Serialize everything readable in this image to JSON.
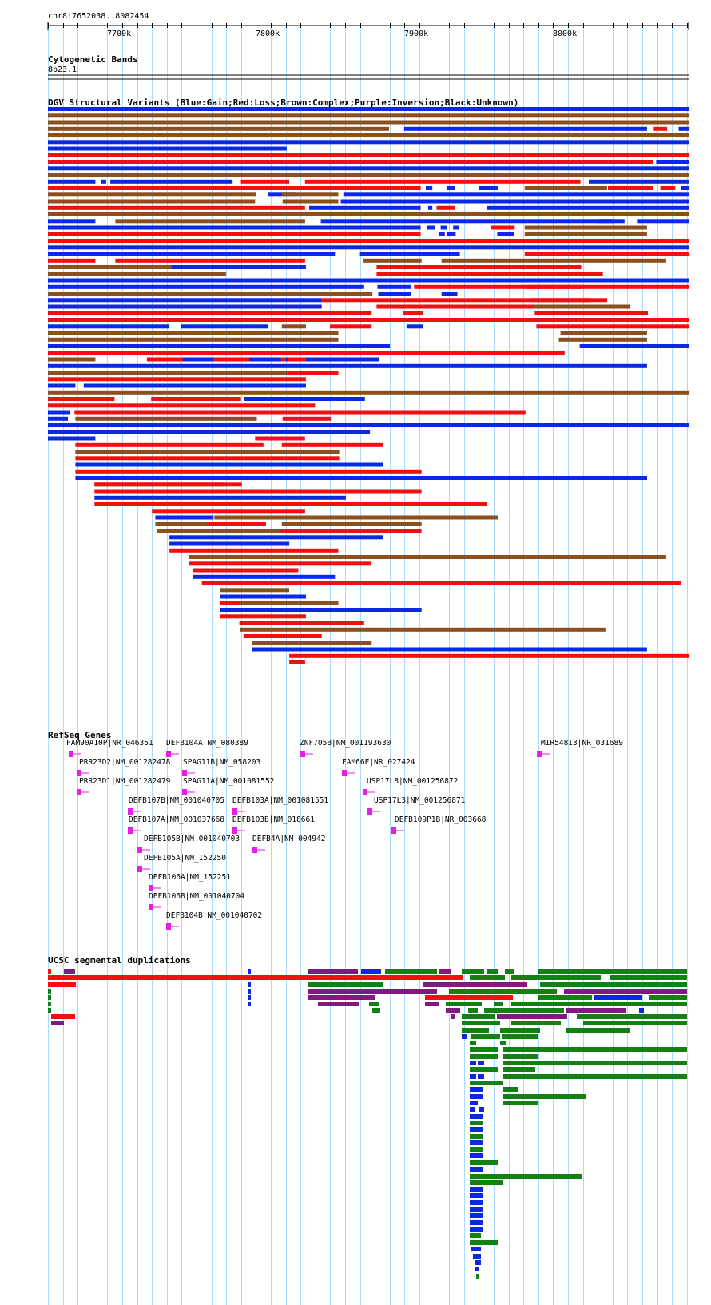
{
  "ruler": {
    "range_label": "chr8:7652038..8082454",
    "ticks": [
      "7700k",
      "7800k",
      "7900k",
      "8000k"
    ]
  },
  "cytoband": {
    "title": "Cytogenetic Bands",
    "band": "8p23.1"
  },
  "dgv": {
    "title": "DGV Structural Variants (Blue:Gain;Red:Loss;Brown:Complex;Purple:Inversion;Black:Unknown)"
  },
  "refseq": {
    "title": "RefSeq Genes",
    "genes": [
      {
        "label": "FAM90A10P|NR_046351"
      },
      {
        "label": "DEFB104A|NM_080389"
      },
      {
        "label": "ZNF705B|NM_001193630"
      },
      {
        "label": "MIR548I3|NR_031689"
      },
      {
        "label": "PRR23D2|NM_001282478"
      },
      {
        "label": "SPAG11B|NM_058203"
      },
      {
        "label": "FAM66E|NR_027424"
      },
      {
        "label": "PRR23D1|NM_001282479"
      },
      {
        "label": "SPAG11A|NM_001081552"
      },
      {
        "label": "USP17L8|NM_001256872"
      },
      {
        "label": "DEFB107B|NM_001040705"
      },
      {
        "label": "DEFB103A|NM_001081551"
      },
      {
        "label": "USP17L3|NM_001256871"
      },
      {
        "label": "DEFB107A|NM_001037668"
      },
      {
        "label": "DEFB103B|NM_018661"
      },
      {
        "label": "DEFB109P1B|NR_003668"
      },
      {
        "label": "DEFB105B|NM_001040703"
      },
      {
        "label": "DEFB4A|NM_004942"
      },
      {
        "label": "DEFB105A|NM_152250"
      },
      {
        "label": "DEFB106A|NM_152251"
      },
      {
        "label": "DEFB106B|NM_001040704"
      },
      {
        "label": "DEFB104B|NM_001040702"
      }
    ]
  },
  "segdups": {
    "title": "UCSC segmental duplications"
  },
  "colors": {
    "gain": "#0a28e6",
    "loss": "#f01010",
    "complex": "#8c501e",
    "inversion": "#801a80",
    "unknown": "#000000",
    "gene": "#e61ee6",
    "segdup_green": "#128012",
    "grid": "#a8dcff"
  },
  "dgv_rows": [
    [
      [
        "b",
        0,
        770
      ]
    ],
    [
      [
        "n",
        0,
        770
      ]
    ],
    [
      [
        "n",
        0,
        770
      ]
    ],
    [
      [
        "n",
        0,
        410
      ],
      [
        "b",
        428,
        720
      ],
      [
        "r",
        728,
        744
      ],
      [
        "b",
        758,
        770
      ]
    ],
    [
      [
        "n",
        0,
        770
      ]
    ],
    [
      [
        "b",
        0,
        770
      ]
    ],
    [
      [
        "b",
        0,
        287
      ]
    ],
    [
      [
        "r",
        0,
        770
      ]
    ],
    [
      [
        "r",
        0,
        727
      ],
      [
        "b",
        731,
        770
      ]
    ],
    [
      [
        "b",
        0,
        770
      ]
    ],
    [
      [
        "n",
        0,
        770
      ]
    ],
    [
      [
        "b",
        0,
        57
      ],
      [
        "b",
        64,
        70
      ],
      [
        "b",
        75,
        222
      ],
      [
        "r",
        232,
        290
      ],
      [
        "r",
        309,
        640
      ],
      [
        "b",
        650,
        770
      ]
    ],
    [
      [
        "r",
        0,
        448
      ],
      [
        "b",
        454,
        462
      ],
      [
        "b",
        479,
        489
      ],
      [
        "b",
        518,
        541
      ],
      [
        "n",
        573,
        672
      ],
      [
        "r",
        673,
        727
      ],
      [
        "r",
        736,
        754
      ],
      [
        "b",
        761,
        770
      ]
    ],
    [
      [
        "n",
        0,
        250
      ],
      [
        "b",
        264,
        298
      ],
      [
        "n",
        281,
        349
      ],
      [
        "b",
        355,
        770
      ]
    ],
    [
      [
        "n",
        0,
        249
      ],
      [
        "n",
        282,
        349
      ],
      [
        "b",
        352,
        770
      ]
    ],
    [
      [
        "r",
        0,
        309
      ],
      [
        "b",
        314,
        448
      ],
      [
        "b",
        457,
        462
      ],
      [
        "r",
        467,
        489
      ],
      [
        "b",
        528,
        770
      ]
    ],
    [
      [
        "n",
        0,
        770
      ]
    ],
    [
      [
        "b",
        0,
        57
      ],
      [
        "n",
        81,
        309
      ],
      [
        "b",
        328,
        681
      ],
      [
        "b",
        662,
        693
      ],
      [
        "b",
        708,
        770
      ]
    ],
    [
      [
        "b",
        0,
        448
      ],
      [
        "b",
        456,
        465
      ],
      [
        "b",
        472,
        480
      ],
      [
        "b",
        487,
        494
      ],
      [
        "r",
        532,
        561
      ],
      [
        "n",
        573,
        720
      ]
    ],
    [
      [
        "r",
        0,
        448
      ],
      [
        "b",
        470,
        477
      ],
      [
        "b",
        479,
        490
      ],
      [
        "b",
        540,
        560
      ],
      [
        "n",
        573,
        720
      ]
    ],
    [
      [
        "r",
        0,
        770
      ]
    ],
    [
      [
        "b",
        0,
        770
      ]
    ],
    [
      [
        "b",
        0,
        345
      ],
      [
        "b",
        375,
        495
      ],
      [
        "r",
        573,
        770
      ]
    ],
    [
      [
        "r",
        0,
        57
      ],
      [
        "r",
        81,
        309
      ],
      [
        "n",
        379,
        449
      ],
      [
        "n",
        473,
        743
      ]
    ],
    [
      [
        "n",
        0,
        148
      ],
      [
        "b",
        148,
        236
      ],
      [
        "b",
        236,
        310
      ],
      [
        "r",
        395,
        641
      ]
    ],
    [
      [
        "n",
        0,
        214
      ],
      [
        "r",
        395,
        667
      ]
    ],
    [
      [
        "b",
        0,
        770
      ]
    ],
    [
      [
        "b",
        0,
        380
      ],
      [
        "b",
        396,
        436
      ],
      [
        "r",
        440,
        641
      ],
      [
        "r",
        573,
        770
      ]
    ],
    [
      [
        "n",
        0,
        390
      ],
      [
        "b",
        397,
        436
      ],
      [
        "b",
        473,
        492
      ]
    ],
    [
      [
        "b",
        0,
        329
      ],
      [
        "r",
        329,
        672
      ],
      [
        "r",
        581,
        651
      ]
    ],
    [
      [
        "b",
        0,
        329
      ],
      [
        "r",
        395,
        651
      ],
      [
        "n",
        584,
        700
      ]
    ],
    [
      [
        "r",
        0,
        389
      ],
      [
        "r",
        427,
        451
      ],
      [
        "r",
        585,
        721
      ]
    ],
    [
      [
        "r",
        0,
        770
      ]
    ],
    [
      [
        "b",
        0,
        146
      ],
      [
        "b",
        160,
        265
      ],
      [
        "n",
        281,
        310
      ],
      [
        "r",
        339,
        389
      ],
      [
        "b",
        431,
        451
      ],
      [
        "r",
        587,
        770
      ]
    ],
    [
      [
        "n",
        0,
        349
      ],
      [
        "n",
        616,
        720
      ]
    ],
    [
      [
        "n",
        0,
        349
      ],
      [
        "n",
        614,
        720
      ]
    ],
    [
      [
        "b",
        0,
        411
      ],
      [
        "b",
        639,
        770
      ]
    ],
    [
      [
        "r",
        0,
        621
      ]
    ],
    [
      [
        "n",
        0,
        57
      ],
      [
        "r",
        119,
        344
      ],
      [
        "b",
        162,
        199
      ],
      [
        "b",
        242,
        280
      ],
      [
        "b",
        286,
        288
      ],
      [
        "b",
        310,
        398
      ]
    ],
    [
      [
        "b",
        0,
        720
      ]
    ],
    [
      [
        "n",
        0,
        288
      ],
      [
        "r",
        288,
        349
      ]
    ],
    [
      [
        "r",
        0,
        310
      ]
    ],
    [
      [
        "b",
        0,
        33
      ],
      [
        "b",
        43,
        310
      ]
    ],
    [
      [
        "n",
        0,
        770
      ]
    ],
    [
      [
        "r",
        0,
        80
      ],
      [
        "r",
        124,
        232
      ],
      [
        "b",
        236,
        381
      ]
    ],
    [
      [
        "r",
        0,
        321
      ]
    ],
    [
      [
        "b",
        0,
        27
      ],
      [
        "r",
        32,
        574
      ]
    ],
    [
      [
        "b",
        0,
        24
      ],
      [
        "n",
        33,
        251
      ],
      [
        "r",
        282,
        340
      ]
    ],
    [
      [
        "b",
        0,
        770
      ]
    ],
    [
      [
        "b",
        0,
        387
      ]
    ],
    [
      [
        "b",
        0,
        57
      ],
      [
        "r",
        249,
        309
      ]
    ],
    [
      [
        "r",
        33,
        259
      ],
      [
        "r",
        281,
        403
      ]
    ],
    [
      [
        "n",
        33,
        350
      ]
    ],
    [
      [
        "r",
        33,
        350
      ]
    ],
    [
      [
        "b",
        33,
        403
      ]
    ],
    [
      [
        "r",
        33,
        449
      ]
    ],
    [
      [
        "b",
        33,
        720
      ]
    ],
    [
      [
        "n",
        56,
        213
      ],
      [
        "r",
        56,
        233
      ]
    ],
    [
      [
        "r",
        56,
        449
      ]
    ],
    [
      [
        "b",
        56,
        358
      ]
    ],
    [
      [
        "r",
        56,
        528
      ]
    ],
    [
      [
        "r",
        125,
        219
      ],
      [
        "r",
        218,
        309
      ]
    ],
    [
      [
        "b",
        129,
        199
      ],
      [
        "n",
        200,
        541
      ]
    ],
    [
      [
        "n",
        129,
        261
      ],
      [
        "r",
        191,
        262
      ],
      [
        "n",
        281,
        449
      ]
    ],
    [
      [
        "n",
        131,
        309
      ],
      [
        "r",
        280,
        449
      ]
    ],
    [
      [
        "b",
        146,
        403
      ]
    ],
    [
      [
        "b",
        146,
        290
      ]
    ],
    [
      [
        "r",
        146,
        349
      ]
    ],
    [
      [
        "n",
        169,
        743
      ]
    ],
    [
      [
        "r",
        169,
        389
      ]
    ],
    [
      [
        "r",
        174,
        301
      ]
    ],
    [
      [
        "b",
        174,
        345
      ]
    ],
    [
      [
        "r",
        185,
        761
      ]
    ],
    [
      [
        "n",
        207,
        290
      ]
    ],
    [
      [
        "b",
        207,
        310
      ]
    ],
    [
      [
        "r",
        207,
        349
      ],
      [
        "n",
        231,
        348
      ]
    ],
    [
      [
        "b",
        207,
        449
      ]
    ],
    [
      [
        "r",
        207,
        310
      ]
    ],
    [
      [
        "r",
        230,
        380
      ]
    ],
    [
      [
        "n",
        231,
        670
      ]
    ],
    [
      [
        "r",
        235,
        329
      ]
    ],
    [
      [
        "n",
        245,
        389
      ]
    ],
    [
      [
        "b",
        245,
        720
      ]
    ],
    [
      [
        "r",
        290,
        770
      ]
    ],
    [
      [
        "r",
        290,
        309
      ]
    ]
  ]
}
